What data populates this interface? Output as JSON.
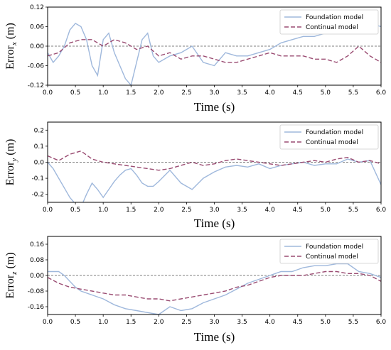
{
  "chart_data": [
    {
      "type": "line",
      "xlabel": "Time (s)",
      "ylabel_main": "Error",
      "ylabel_sub": "x",
      "ylabel_unit": " (m)",
      "xlim": [
        0,
        6
      ],
      "ylim": [
        -0.12,
        0.12
      ],
      "xticks": [
        "0.0",
        "0.5",
        "1.0",
        "1.5",
        "2.0",
        "2.5",
        "3.0",
        "3.5",
        "4.0",
        "4.5",
        "5.0",
        "5.5",
        "6.0"
      ],
      "yticks": [
        {
          "v": -0.12,
          "label": "-0.12"
        },
        {
          "v": -0.06,
          "label": "-0.06"
        },
        {
          "v": 0.0,
          "label": "0.00"
        },
        {
          "v": 0.06,
          "label": "0.06"
        },
        {
          "v": 0.12,
          "label": "0.12"
        }
      ],
      "legend_position": "top-right",
      "series": [
        {
          "name": "Foundation model",
          "style": "solid",
          "color": "#9fb8dc",
          "x": [
            0,
            0.1,
            0.2,
            0.3,
            0.4,
            0.5,
            0.6,
            0.7,
            0.8,
            0.9,
            1.0,
            1.1,
            1.2,
            1.3,
            1.4,
            1.5,
            1.6,
            1.7,
            1.8,
            1.9,
            2.0,
            2.2,
            2.4,
            2.6,
            2.8,
            3.0,
            3.2,
            3.4,
            3.6,
            3.8,
            4.0,
            4.2,
            4.4,
            4.6,
            4.8,
            5.0,
            5.2,
            5.4,
            5.6,
            5.8,
            6.0
          ],
          "y": [
            -0.02,
            -0.05,
            -0.03,
            0.0,
            0.05,
            0.07,
            0.06,
            0.02,
            -0.06,
            -0.09,
            0.02,
            0.04,
            -0.02,
            -0.06,
            -0.1,
            -0.12,
            -0.05,
            0.02,
            0.04,
            -0.03,
            -0.05,
            -0.03,
            -0.02,
            0.0,
            -0.05,
            -0.06,
            -0.02,
            -0.03,
            -0.03,
            -0.02,
            -0.01,
            0.01,
            0.02,
            0.03,
            0.03,
            0.04,
            0.05,
            0.06,
            0.07,
            0.07,
            0.06
          ]
        },
        {
          "name": "Continual model",
          "style": "dashed",
          "color": "#9a4c72",
          "x": [
            0,
            0.2,
            0.4,
            0.6,
            0.8,
            1.0,
            1.2,
            1.4,
            1.6,
            1.8,
            2.0,
            2.2,
            2.4,
            2.6,
            2.8,
            3.0,
            3.2,
            3.4,
            3.6,
            3.8,
            4.0,
            4.2,
            4.4,
            4.6,
            4.8,
            5.0,
            5.2,
            5.4,
            5.6,
            5.8,
            6.0
          ],
          "y": [
            -0.03,
            -0.02,
            0.01,
            0.02,
            0.02,
            0.0,
            0.02,
            0.01,
            -0.01,
            0.0,
            -0.03,
            -0.02,
            -0.04,
            -0.03,
            -0.03,
            -0.04,
            -0.05,
            -0.05,
            -0.04,
            -0.03,
            -0.02,
            -0.03,
            -0.03,
            -0.03,
            -0.04,
            -0.04,
            -0.05,
            -0.03,
            0.0,
            -0.03,
            -0.05
          ]
        }
      ]
    },
    {
      "type": "line",
      "xlabel": "Time (s)",
      "ylabel_main": "Error",
      "ylabel_sub": "y",
      "ylabel_unit": " (m)",
      "xlim": [
        0,
        6
      ],
      "ylim": [
        -0.25,
        0.25
      ],
      "xticks": [
        "0.0",
        "0.5",
        "1.0",
        "1.5",
        "2.0",
        "2.5",
        "3.0",
        "3.5",
        "4.0",
        "4.5",
        "5.0",
        "5.5",
        "6.0"
      ],
      "yticks": [
        {
          "v": -0.2,
          "label": "-0.2"
        },
        {
          "v": -0.1,
          "label": "-0.1"
        },
        {
          "v": 0.0,
          "label": "0.0"
        },
        {
          "v": 0.1,
          "label": "0.1"
        },
        {
          "v": 0.2,
          "label": "0.2"
        }
      ],
      "legend_position": "top-right",
      "series": [
        {
          "name": "Foundation model",
          "style": "solid",
          "color": "#9fb8dc",
          "x": [
            0,
            0.1,
            0.2,
            0.3,
            0.4,
            0.5,
            0.6,
            0.7,
            0.8,
            0.9,
            1.0,
            1.1,
            1.2,
            1.3,
            1.4,
            1.5,
            1.6,
            1.7,
            1.8,
            1.9,
            2.0,
            2.2,
            2.4,
            2.6,
            2.8,
            3.0,
            3.2,
            3.4,
            3.6,
            3.8,
            4.0,
            4.2,
            4.4,
            4.6,
            4.8,
            5.0,
            5.2,
            5.4,
            5.6,
            5.8,
            6.0
          ],
          "y": [
            0.0,
            -0.04,
            -0.1,
            -0.16,
            -0.22,
            -0.26,
            -0.28,
            -0.2,
            -0.13,
            -0.17,
            -0.22,
            -0.17,
            -0.12,
            -0.08,
            -0.05,
            -0.04,
            -0.08,
            -0.13,
            -0.15,
            -0.15,
            -0.12,
            -0.05,
            -0.13,
            -0.17,
            -0.1,
            -0.06,
            -0.03,
            -0.02,
            -0.03,
            -0.01,
            -0.04,
            -0.02,
            -0.01,
            0.0,
            -0.02,
            -0.01,
            -0.01,
            0.02,
            0.0,
            0.01,
            -0.14
          ]
        },
        {
          "name": "Continual model",
          "style": "dashed",
          "color": "#9a4c72",
          "x": [
            0,
            0.2,
            0.4,
            0.6,
            0.8,
            1.0,
            1.2,
            1.4,
            1.6,
            1.8,
            2.0,
            2.2,
            2.4,
            2.6,
            2.8,
            3.0,
            3.2,
            3.4,
            3.6,
            3.8,
            4.0,
            4.2,
            4.4,
            4.6,
            4.8,
            5.0,
            5.2,
            5.4,
            5.6,
            5.8,
            6.0
          ],
          "y": [
            0.04,
            0.01,
            0.05,
            0.07,
            0.02,
            0.0,
            -0.01,
            -0.02,
            -0.03,
            -0.04,
            -0.05,
            -0.04,
            -0.02,
            0.0,
            -0.02,
            -0.01,
            0.01,
            0.02,
            0.01,
            0.0,
            -0.01,
            -0.02,
            -0.01,
            0.0,
            0.01,
            0.0,
            0.02,
            0.03,
            0.0,
            0.01,
            -0.01
          ]
        }
      ]
    },
    {
      "type": "line",
      "xlabel": "Time (s)",
      "ylabel_main": "Error",
      "ylabel_sub": "z",
      "ylabel_unit": " (m)",
      "xlim": [
        0,
        6
      ],
      "ylim": [
        -0.2,
        0.2
      ],
      "xticks": [
        "0.0",
        "0.5",
        "1.0",
        "1.5",
        "2.0",
        "2.5",
        "3.0",
        "3.5",
        "4.0",
        "4.5",
        "5.0",
        "5.5",
        "6.0"
      ],
      "yticks": [
        {
          "v": -0.16,
          "label": "-0.16"
        },
        {
          "v": -0.08,
          "label": "-0.08"
        },
        {
          "v": 0.0,
          "label": "0.00"
        },
        {
          "v": 0.08,
          "label": "0.08"
        },
        {
          "v": 0.16,
          "label": "0.16"
        }
      ],
      "legend_position": "top-right",
      "series": [
        {
          "name": "Foundation model",
          "style": "solid",
          "color": "#9fb8dc",
          "x": [
            0,
            0.1,
            0.2,
            0.3,
            0.4,
            0.5,
            0.6,
            0.8,
            1.0,
            1.2,
            1.4,
            1.6,
            1.8,
            2.0,
            2.2,
            2.4,
            2.6,
            2.8,
            3.0,
            3.2,
            3.4,
            3.6,
            3.8,
            4.0,
            4.2,
            4.4,
            4.6,
            4.8,
            5.0,
            5.2,
            5.4,
            5.6,
            5.8,
            6.0
          ],
          "y": [
            0.02,
            0.02,
            0.02,
            0.0,
            -0.03,
            -0.06,
            -0.08,
            -0.1,
            -0.12,
            -0.15,
            -0.17,
            -0.18,
            -0.19,
            -0.2,
            -0.16,
            -0.18,
            -0.17,
            -0.14,
            -0.12,
            -0.1,
            -0.07,
            -0.04,
            -0.02,
            0.0,
            0.02,
            0.02,
            0.04,
            0.05,
            0.05,
            0.06,
            0.06,
            0.02,
            0.01,
            -0.01
          ]
        },
        {
          "name": "Continual model",
          "style": "dashed",
          "color": "#9a4c72",
          "x": [
            0,
            0.2,
            0.4,
            0.6,
            0.8,
            1.0,
            1.2,
            1.4,
            1.6,
            1.8,
            2.0,
            2.2,
            2.4,
            2.6,
            2.8,
            3.0,
            3.2,
            3.4,
            3.6,
            3.8,
            4.0,
            4.2,
            4.4,
            4.6,
            4.8,
            5.0,
            5.2,
            5.4,
            5.6,
            5.8,
            6.0
          ],
          "y": [
            -0.01,
            -0.04,
            -0.06,
            -0.07,
            -0.08,
            -0.09,
            -0.1,
            -0.1,
            -0.11,
            -0.12,
            -0.12,
            -0.13,
            -0.12,
            -0.11,
            -0.1,
            -0.09,
            -0.08,
            -0.06,
            -0.05,
            -0.03,
            -0.01,
            0.0,
            0.0,
            0.0,
            0.01,
            0.02,
            0.02,
            0.01,
            0.01,
            0.0,
            -0.03
          ]
        }
      ]
    }
  ]
}
